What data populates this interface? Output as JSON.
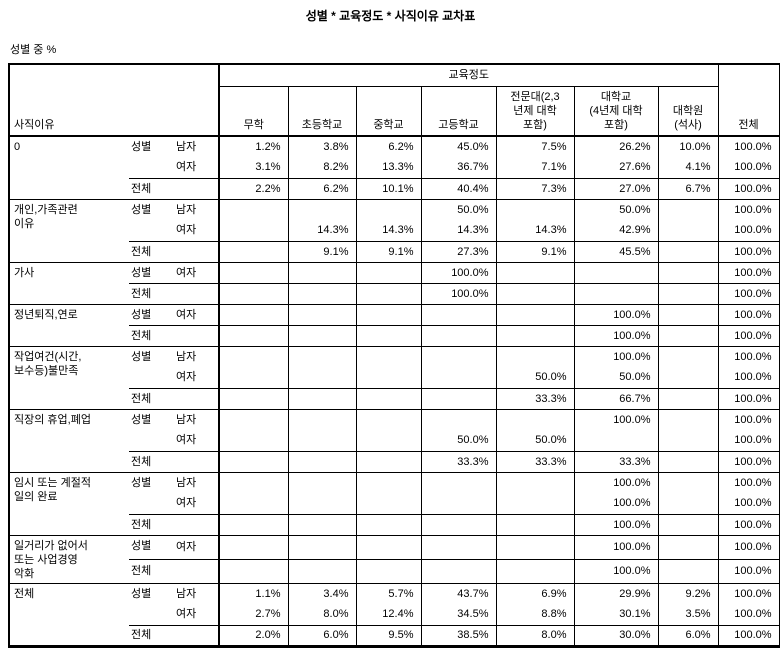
{
  "title": "성별 * 교육정도 * 사직이유 교차표",
  "subtitle": "성별 중 %",
  "table": {
    "corner_label": "사직이유",
    "col_group_label": "교육정도",
    "total_col_label": "전체",
    "gender_label": "성별",
    "columns": [
      "무학",
      "초등학교",
      "중학교",
      "고등학교",
      "전문대(2,3\n년제 대학\n포함)",
      "대학교\n(4년제 대학\n포함)",
      "대학원\n(석사)"
    ],
    "blocks": [
      {
        "reason": "0",
        "rows": [
          {
            "label": "남자",
            "values": [
              "1.2%",
              "3.8%",
              "6.2%",
              "45.0%",
              "7.5%",
              "26.2%",
              "10.0%",
              "100.0%"
            ]
          },
          {
            "label": "여자",
            "values": [
              "3.1%",
              "8.2%",
              "13.3%",
              "36.7%",
              "7.1%",
              "27.6%",
              "4.1%",
              "100.0%"
            ]
          },
          {
            "label": "전체",
            "values": [
              "2.2%",
              "6.2%",
              "10.1%",
              "40.4%",
              "7.3%",
              "27.0%",
              "6.7%",
              "100.0%"
            ]
          }
        ]
      },
      {
        "reason": "개인,가족관련\n이유",
        "rows": [
          {
            "label": "남자",
            "values": [
              "",
              "",
              "",
              "50.0%",
              "",
              "50.0%",
              "",
              "100.0%"
            ]
          },
          {
            "label": "여자",
            "values": [
              "",
              "14.3%",
              "14.3%",
              "14.3%",
              "14.3%",
              "42.9%",
              "",
              "100.0%"
            ]
          },
          {
            "label": "전체",
            "values": [
              "",
              "9.1%",
              "9.1%",
              "27.3%",
              "9.1%",
              "45.5%",
              "",
              "100.0%"
            ]
          }
        ]
      },
      {
        "reason": "가사",
        "rows": [
          {
            "label": "여자",
            "values": [
              "",
              "",
              "",
              "100.0%",
              "",
              "",
              "",
              "100.0%"
            ]
          },
          {
            "label": "전체",
            "values": [
              "",
              "",
              "",
              "100.0%",
              "",
              "",
              "",
              "100.0%"
            ]
          }
        ]
      },
      {
        "reason": "정년퇴직,연로",
        "rows": [
          {
            "label": "여자",
            "values": [
              "",
              "",
              "",
              "",
              "",
              "100.0%",
              "",
              "100.0%"
            ]
          },
          {
            "label": "전체",
            "values": [
              "",
              "",
              "",
              "",
              "",
              "100.0%",
              "",
              "100.0%"
            ]
          }
        ]
      },
      {
        "reason": "작업여건(시간,\n보수등)불만족",
        "rows": [
          {
            "label": "남자",
            "values": [
              "",
              "",
              "",
              "",
              "",
              "100.0%",
              "",
              "100.0%"
            ]
          },
          {
            "label": "여자",
            "values": [
              "",
              "",
              "",
              "",
              "50.0%",
              "50.0%",
              "",
              "100.0%"
            ]
          },
          {
            "label": "전체",
            "values": [
              "",
              "",
              "",
              "",
              "33.3%",
              "66.7%",
              "",
              "100.0%"
            ]
          }
        ]
      },
      {
        "reason": "직장의 휴업,폐업",
        "rows": [
          {
            "label": "남자",
            "values": [
              "",
              "",
              "",
              "",
              "",
              "100.0%",
              "",
              "100.0%"
            ]
          },
          {
            "label": "여자",
            "values": [
              "",
              "",
              "",
              "50.0%",
              "50.0%",
              "",
              "",
              "100.0%"
            ]
          },
          {
            "label": "전체",
            "values": [
              "",
              "",
              "",
              "33.3%",
              "33.3%",
              "33.3%",
              "",
              "100.0%"
            ]
          }
        ]
      },
      {
        "reason": "임시 또는 계절적\n일의 완료",
        "rows": [
          {
            "label": "남자",
            "values": [
              "",
              "",
              "",
              "",
              "",
              "100.0%",
              "",
              "100.0%"
            ]
          },
          {
            "label": "여자",
            "values": [
              "",
              "",
              "",
              "",
              "",
              "100.0%",
              "",
              "100.0%"
            ]
          },
          {
            "label": "전체",
            "values": [
              "",
              "",
              "",
              "",
              "",
              "100.0%",
              "",
              "100.0%"
            ]
          }
        ]
      },
      {
        "reason": "일거리가 없어서\n또는 사업경영\n악화",
        "rows": [
          {
            "label": "여자",
            "values": [
              "",
              "",
              "",
              "",
              "",
              "100.0%",
              "",
              "100.0%"
            ]
          },
          {
            "label": "전체",
            "values": [
              "",
              "",
              "",
              "",
              "",
              "100.0%",
              "",
              "100.0%"
            ]
          }
        ]
      },
      {
        "reason": "전체",
        "rows": [
          {
            "label": "남자",
            "values": [
              "1.1%",
              "3.4%",
              "5.7%",
              "43.7%",
              "6.9%",
              "29.9%",
              "9.2%",
              "100.0%"
            ]
          },
          {
            "label": "여자",
            "values": [
              "2.7%",
              "8.0%",
              "12.4%",
              "34.5%",
              "8.8%",
              "30.1%",
              "3.5%",
              "100.0%"
            ]
          },
          {
            "label": "전체",
            "values": [
              "2.0%",
              "6.0%",
              "9.5%",
              "38.5%",
              "8.0%",
              "30.0%",
              "6.0%",
              "100.0%"
            ]
          }
        ]
      }
    ]
  }
}
